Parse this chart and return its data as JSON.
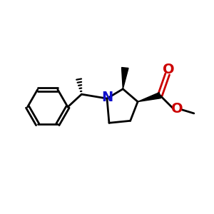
{
  "bg_color": "#ffffff",
  "N_color": "#1010cc",
  "O_color": "#cc0000",
  "bond_color": "#000000",
  "bond_width": 2.0,
  "fig_size": [
    3.0,
    3.0
  ],
  "dpi": 100,
  "xlim": [
    0,
    10
  ],
  "ylim": [
    0,
    10
  ],
  "N_fontsize": 14,
  "O_fontsize": 14
}
